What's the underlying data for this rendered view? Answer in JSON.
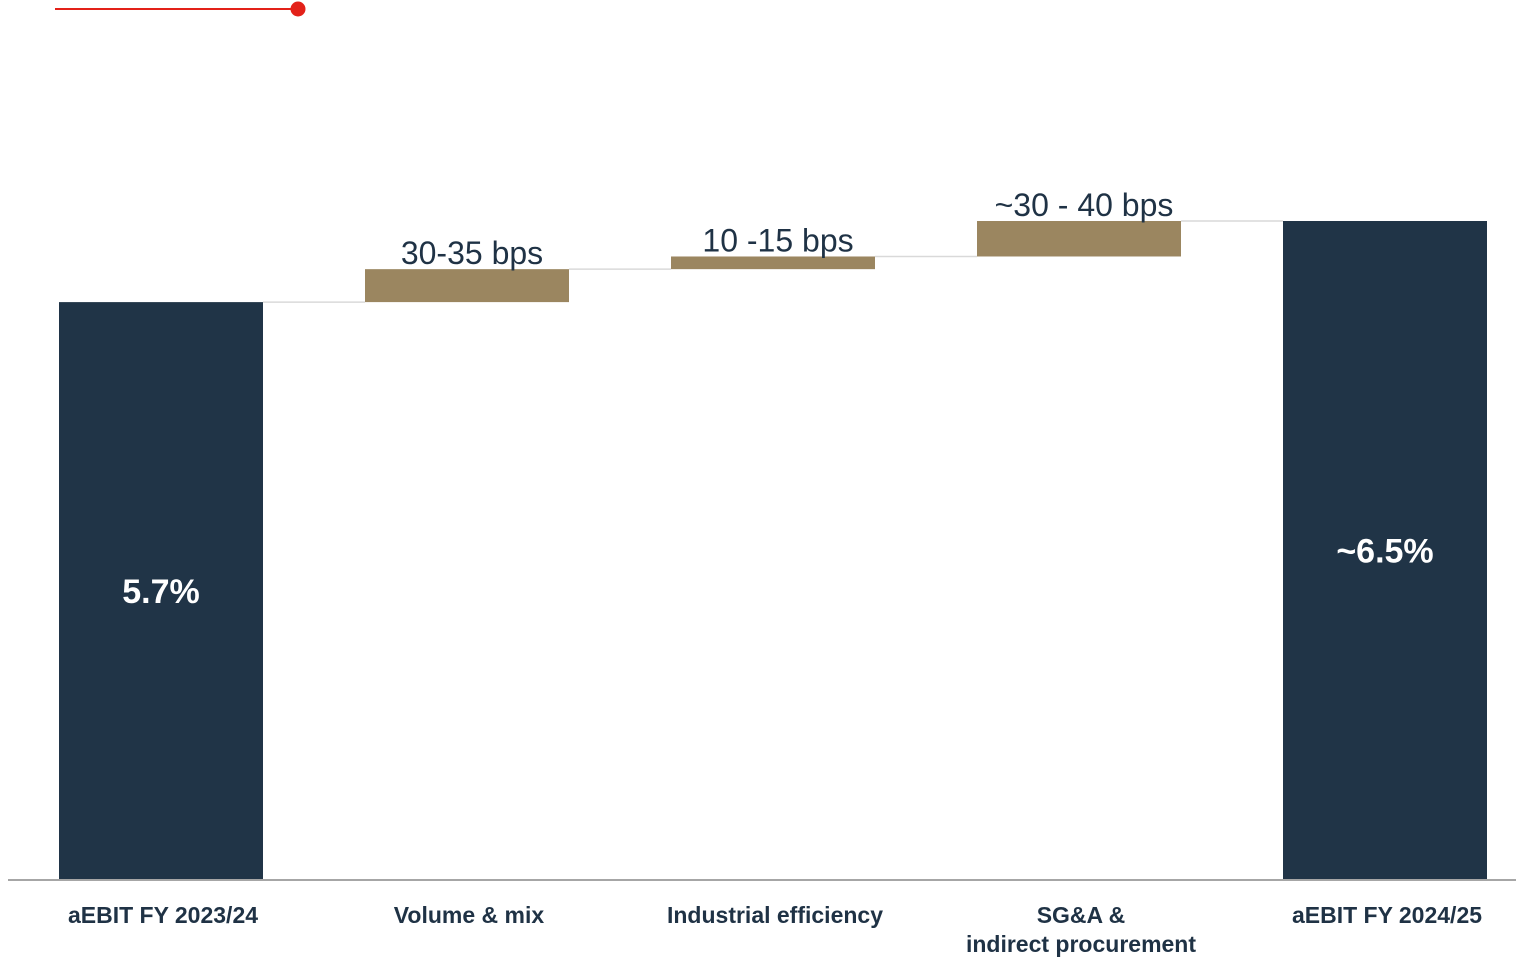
{
  "colors": {
    "total": "#203447",
    "step": "#9b8660",
    "accent": "#e32119"
  },
  "chart_data": {
    "type": "bar",
    "subtype": "waterfall",
    "title": "",
    "xlabel": "",
    "ylabel": "",
    "categories": [
      [
        "aEBIT FY 2023/24"
      ],
      [
        "Volume & mix"
      ],
      [
        "Industrial efficiency"
      ],
      [
        "SG&A &",
        "indirect procurement"
      ],
      [
        "aEBIT FY 2024/25"
      ]
    ],
    "bars": [
      {
        "kind": "total",
        "start": 0,
        "end": 5.7,
        "label": "5.7%"
      },
      {
        "kind": "step",
        "start": 5.7,
        "end": 6.025,
        "label": "30-35 bps"
      },
      {
        "kind": "step",
        "start": 6.025,
        "end": 6.15,
        "label": "10 -15 bps"
      },
      {
        "kind": "step",
        "start": 6.15,
        "end": 6.5,
        "label": "~30 - 40 bps"
      },
      {
        "kind": "total",
        "start": 0,
        "end": 6.5,
        "label": "~6.5%"
      }
    ],
    "unit": "%",
    "ylim": [
      0,
      6.5
    ],
    "grid": false,
    "legend": "none"
  }
}
